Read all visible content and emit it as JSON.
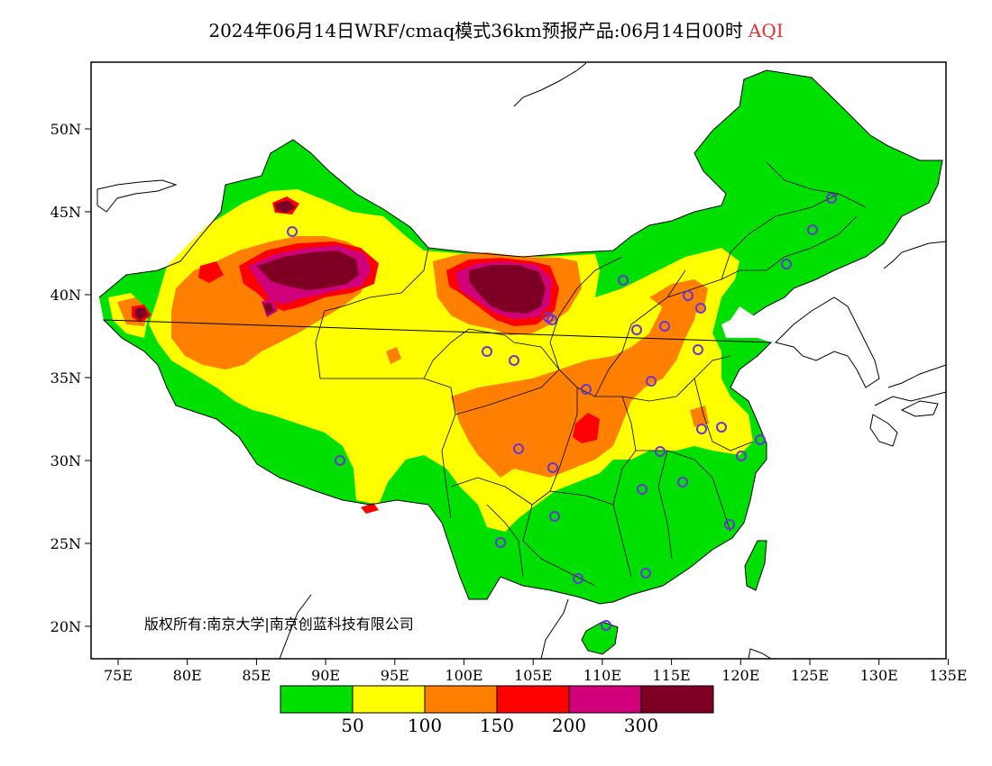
{
  "title": {
    "text": "2024年06月14日WRF/cmaq模式36km预报产品:06月14日00时",
    "product": "AQI"
  },
  "map": {
    "lon_ticks": [
      "75E",
      "80E",
      "85E",
      "90E",
      "95E",
      "100E",
      "105E",
      "110E",
      "115E",
      "120E",
      "125E",
      "130E",
      "135E"
    ],
    "lat_ticks": [
      "50N",
      "45N",
      "40N",
      "35N",
      "30N",
      "25N",
      "20N"
    ],
    "copyright": "版权所有:南京大学|南京创蓝科技有限公司"
  },
  "legend": {
    "colors": [
      "#00e000",
      "#ffff00",
      "#ff8000",
      "#ff0000",
      "#d0007a",
      "#7d0024"
    ],
    "labels": [
      "50",
      "100",
      "150",
      "200",
      "300"
    ]
  },
  "stations": 32
}
